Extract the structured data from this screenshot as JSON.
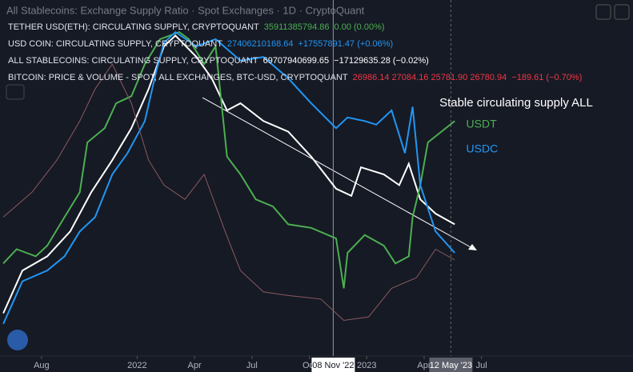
{
  "chart_data": {
    "type": "line",
    "title": "All Stablecoins: Exchange Supply Ratio · Spot Exchanges · 1D · CryptoQuant",
    "legend_rows": [
      {
        "label": "TETHER USD(ETH): CIRCULATING SUPPLY, CRYPTOQUANT",
        "value": "35911385794.86",
        "change": "0.00 (0.00%)",
        "color": "#4caf50"
      },
      {
        "label": "USD COIN: CIRCULATING SUPPLY, CRYPTOQUANT",
        "value": "27406210168.64",
        "change": "+17557891.47 (+0.06%)",
        "color": "#2196f3"
      },
      {
        "label": "ALL STABLECOINS: CIRCULATING SUPPLY, CRYPTOQUANT",
        "value": "69707940699.65",
        "change": "−17129635.28 (−0.02%)",
        "color": "#ffffff"
      },
      {
        "label": "BITCOIN: PRICE & VOLUME - SPOT, ALL EXCHANGES, BTC-USD, CRYPTOQUANT",
        "value": "26986.14 27084.16 25781.90 26780.94",
        "change": "−189.61 (−0.70%)",
        "color": "#f23645"
      }
    ],
    "series": [
      {
        "name": "All stablecoins",
        "color": "#ffffff",
        "x": [
          -1,
          0,
          1.3,
          2.5,
          3.6,
          4.7,
          5.7,
          6.6,
          7.4,
          8,
          9.1,
          9.9,
          10.7,
          11.4,
          12.6,
          13.9,
          15.1,
          16.4,
          17.2,
          17.7,
          18.9,
          19.7,
          20.2,
          20.8,
          21.6,
          22.6
        ],
        "values": [
          12,
          24,
          28,
          35,
          46,
          55,
          64,
          75,
          87,
          90,
          84,
          78,
          69,
          71,
          66,
          63,
          56,
          47,
          45,
          53,
          51,
          48,
          54,
          44,
          40,
          37
        ]
      },
      {
        "name": "USDT",
        "color": "#4caf50",
        "x": [
          -1,
          -0.3,
          0.7,
          1.3,
          2.2,
          3,
          3.4,
          4.3,
          4.9,
          5.7,
          6.4,
          7.2,
          8.2,
          8.7,
          9.5,
          10.1,
          10.7,
          11.4,
          12.2,
          13.1,
          13.9,
          15.1,
          16.4,
          16.8,
          17,
          17.9,
          18.9,
          19.5,
          20.2,
          20.4,
          20.8,
          21.2,
          21.9,
          22.6
        ],
        "values": [
          26,
          30,
          28,
          31,
          39,
          46,
          60,
          64,
          71,
          73,
          82,
          89,
          91,
          89,
          82,
          87,
          56,
          51,
          44,
          42,
          37,
          36,
          33,
          19,
          29,
          34,
          31,
          26,
          28,
          39,
          48,
          60,
          63,
          66
        ]
      },
      {
        "name": "USDC",
        "color": "#2196f3",
        "x": [
          -1,
          0,
          1.3,
          2.2,
          3,
          3.8,
          4.7,
          5.5,
          6.4,
          7,
          7.4,
          8,
          9.1,
          10.1,
          11.4,
          12.6,
          13.9,
          15.1,
          16.4,
          17,
          17.9,
          18.5,
          19.3,
          20,
          20.4,
          20.8,
          21.6,
          22.6
        ],
        "values": [
          9,
          21,
          24,
          28,
          35,
          39,
          51,
          57,
          66,
          80,
          88,
          91,
          87,
          89,
          83,
          84,
          78,
          71,
          64,
          67,
          66,
          65,
          69,
          57,
          70,
          48,
          35,
          29
        ]
      },
      {
        "name": "BITCOIN",
        "color": "#8a5a5e",
        "x": [
          -1,
          0.5,
          1.8,
          3,
          3.8,
          4.7,
          5.7,
          6.6,
          7.4,
          8.5,
          9.5,
          10.6,
          11.4,
          12.6,
          13.9,
          15.6,
          16.8,
          18.1,
          19.3,
          20.6,
          21.6,
          22.6
        ],
        "values": [
          39,
          46,
          55,
          66,
          75,
          82,
          71,
          55,
          48,
          44,
          51,
          35,
          24,
          18,
          17,
          16,
          10,
          11,
          19,
          22,
          30,
          27
        ]
      }
    ],
    "xlim": [
      -1.17,
      31.67
    ],
    "ylim": [
      0,
      100
    ],
    "xticks": [
      {
        "value": 1,
        "label": "Aug"
      },
      {
        "value": 6,
        "label": "2022"
      },
      {
        "value": 9,
        "label": "Apr"
      },
      {
        "value": 12,
        "label": "Jul"
      },
      {
        "value": 15,
        "label": "Oct"
      },
      {
        "value": 18,
        "label": "2023"
      },
      {
        "value": 21,
        "label": "Apr"
      },
      {
        "value": 24,
        "label": "Jul"
      }
    ],
    "crosshairs": [
      {
        "value": 16.25,
        "label": "08 Nov '22"
      },
      {
        "value": 22.4,
        "label": "12 May '23"
      }
    ],
    "annotations": [
      {
        "text": "Stable circulating supply ALL",
        "color": "#ffffff",
        "x": 21.8,
        "y": 71
      },
      {
        "text": "USDT",
        "color": "#4caf50",
        "x": 23.2,
        "y": 65
      },
      {
        "text": "USDC",
        "color": "#2196f3",
        "x": 23.2,
        "y": 58
      }
    ]
  }
}
